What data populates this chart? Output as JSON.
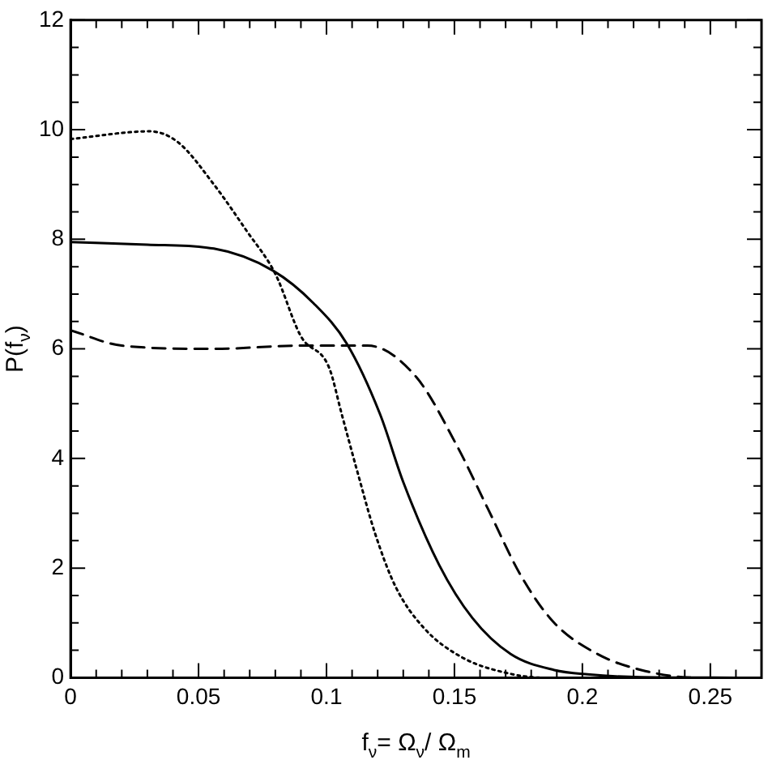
{
  "chart_data": {
    "type": "line",
    "xlabel": "f$_{ν}$= Ω$_{ν}$/ Ω$_{m}$",
    "ylabel": "P(f$_{ν}$)",
    "xlim": [
      0,
      0.27
    ],
    "ylim": [
      0,
      12
    ],
    "xticks": [
      0,
      {
        "value": 0.01,
        "label": null
      },
      {
        "value": 0.02,
        "label": null
      },
      {
        "value": 0.03,
        "label": null
      },
      {
        "value": 0.04,
        "label": null
      },
      0.05,
      {
        "value": 0.06,
        "label": null
      },
      {
        "value": 0.07,
        "label": null
      },
      {
        "value": 0.08,
        "label": null
      },
      {
        "value": 0.09,
        "label": null
      },
      0.1,
      {
        "value": 0.11,
        "label": null
      },
      {
        "value": 0.12,
        "label": null
      },
      {
        "value": 0.13,
        "label": null
      },
      {
        "value": 0.14,
        "label": null
      },
      0.15,
      {
        "value": 0.16,
        "label": null
      },
      {
        "value": 0.17,
        "label": null
      },
      {
        "value": 0.18,
        "label": null
      },
      {
        "value": 0.19,
        "label": null
      },
      0.2,
      {
        "value": 0.21,
        "label": null
      },
      {
        "value": 0.22,
        "label": null
      },
      {
        "value": 0.23,
        "label": null
      },
      {
        "value": 0.24,
        "label": null
      },
      0.25,
      {
        "value": 0.26,
        "label": null
      }
    ],
    "yticks": [
      0,
      {
        "value": 0.5,
        "label": null
      },
      {
        "value": 1,
        "label": null
      },
      {
        "value": 1.5,
        "label": null
      },
      2,
      {
        "value": 2.5,
        "label": null
      },
      {
        "value": 3,
        "label": null
      },
      {
        "value": 3.5,
        "label": null
      },
      4,
      {
        "value": 4.5,
        "label": null
      },
      {
        "value": 5,
        "label": null
      },
      {
        "value": 5.5,
        "label": null
      },
      6,
      {
        "value": 6.5,
        "label": null
      },
      {
        "value": 7,
        "label": null
      },
      {
        "value": 7.5,
        "label": null
      },
      8,
      {
        "value": 8.5,
        "label": null
      },
      {
        "value": 9,
        "label": null
      },
      {
        "value": 9.5,
        "label": null
      },
      10,
      {
        "value": 10.5,
        "label": null
      },
      {
        "value": 11,
        "label": null
      },
      {
        "value": 11.5,
        "label": null
      },
      12
    ],
    "grid": false,
    "legend": false,
    "marker": "none",
    "series": [
      {
        "color": "#000000",
        "line_style": "solid",
        "x": [
          0,
          0.03,
          0.056,
          0.079,
          0.095,
          0.108,
          0.121,
          0.13,
          0.144,
          0.157,
          0.172,
          0.189,
          0.202,
          0.223,
          0.26
        ],
        "values": [
          7.95,
          7.9,
          7.83,
          7.43,
          6.83,
          6.09,
          4.8,
          3.57,
          2.06,
          1.09,
          0.43,
          0.14,
          0.06,
          0.01,
          0
        ]
      },
      {
        "color": "#000000",
        "line_style": "dashed",
        "x": [
          0,
          0.02,
          0.056,
          0.09,
          0.116,
          0.135,
          0.151,
          0.163,
          0.176,
          0.189,
          0.206,
          0.223,
          0.244,
          0.26
        ],
        "values": [
          6.34,
          6.06,
          6.0,
          6.06,
          6.06,
          5.49,
          4.23,
          3.09,
          1.86,
          1.0,
          0.43,
          0.14,
          0,
          0
        ]
      },
      {
        "color": "#000000",
        "line_style": "dotted",
        "x": [
          0,
          0.031,
          0.042,
          0.056,
          0.069,
          0.08,
          0.09,
          0.101,
          0.106,
          0.112,
          0.119,
          0.127,
          0.138,
          0.153,
          0.17,
          0.185,
          0.2
        ],
        "values": [
          9.83,
          9.97,
          9.77,
          9.0,
          8.14,
          7.37,
          6.23,
          5.66,
          4.8,
          3.77,
          2.63,
          1.66,
          0.91,
          0.37,
          0.09,
          0,
          0
        ]
      }
    ]
  }
}
